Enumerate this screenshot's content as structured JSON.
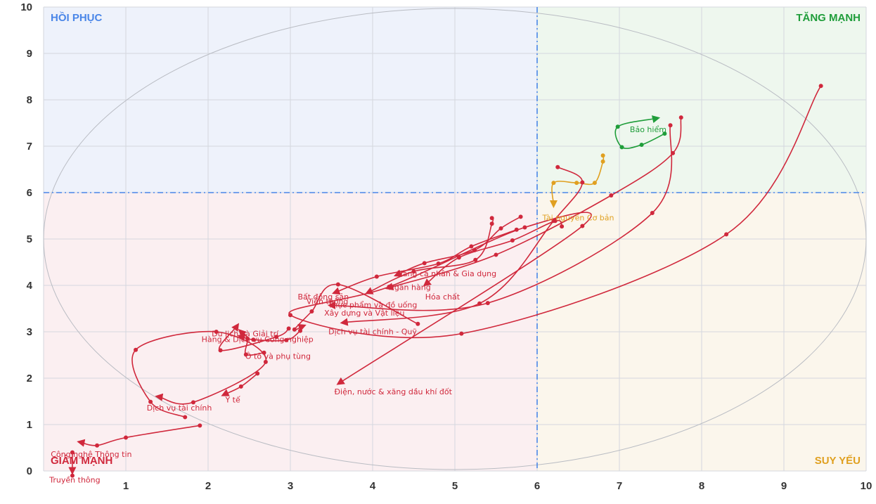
{
  "chart_data": {
    "type": "scatter",
    "title": "",
    "xlabel": "",
    "ylabel": "",
    "xlim": [
      0,
      10
    ],
    "ylim": [
      0,
      10
    ],
    "grid": true,
    "xticks": [
      "1",
      "2",
      "3",
      "4",
      "5",
      "6",
      "7",
      "8",
      "9",
      "10"
    ],
    "yticks": [
      "0",
      "1",
      "2",
      "3",
      "4",
      "5",
      "6",
      "7",
      "8",
      "9",
      "10"
    ],
    "threshold": {
      "x": 6,
      "y": 6
    },
    "quadrants": [
      {
        "key": "top_left",
        "label": "HỒI PHỤC",
        "color": "#4a86e8",
        "fill": "#eef2fb"
      },
      {
        "key": "top_right",
        "label": "TĂNG MẠNH",
        "color": "#1f9d3a",
        "fill": "#eef7ee"
      },
      {
        "key": "bottom_left",
        "label": "GIẢM MẠNH",
        "color": "#d0283c",
        "fill": "#fbeff1"
      },
      {
        "key": "bottom_right",
        "label": "SUY YẾU",
        "color": "#e0a020",
        "fill": "#fbf6ec"
      }
    ],
    "colors": {
      "red": "#d0283c",
      "green": "#1f9d3a",
      "orange": "#e0a020"
    },
    "series": [
      {
        "name": "Bảo hiểm",
        "color": "#1f9d3a",
        "label_at": [
          7.35,
          7.3
        ],
        "points": [
          [
            7.55,
            7.27
          ],
          [
            7.27,
            7.03
          ],
          [
            7.03,
            6.98
          ],
          [
            6.98,
            7.42
          ],
          [
            7.45,
            7.6
          ]
        ]
      },
      {
        "name": "Tài nguyên Cơ bản",
        "color": "#e0a020",
        "label_at": [
          6.5,
          5.4
        ],
        "points": [
          [
            6.8,
            6.8
          ],
          [
            6.8,
            6.67
          ],
          [
            6.7,
            6.21
          ],
          [
            6.48,
            6.21
          ],
          [
            6.2,
            6.21
          ],
          [
            6.2,
            5.75
          ]
        ]
      },
      {
        "name": "Hàng cá nhân & Gia dụng",
        "color": "#d0283c",
        "label_at": [
          4.9,
          4.2
        ],
        "points": [
          [
            5.8,
            5.48
          ],
          [
            5.56,
            5.23
          ],
          [
            5.24,
            4.76
          ],
          [
            4.63,
            4.48
          ],
          [
            4.3,
            4.23
          ]
        ]
      },
      {
        "name": "Ngân hàng",
        "color": "#d0283c",
        "label_at": [
          4.45,
          3.9
        ],
        "points": [
          [
            5.45,
            5.45
          ],
          [
            5.45,
            5.33
          ],
          [
            5.25,
            4.55
          ],
          [
            4.5,
            4.3
          ],
          [
            3.95,
            3.85
          ]
        ]
      },
      {
        "name": "Hóa chất",
        "color": "#d0283c",
        "label_at": [
          4.85,
          3.7
        ],
        "points": [
          [
            6.3,
            5.27
          ],
          [
            6.22,
            5.39
          ],
          [
            5.7,
            4.97
          ],
          [
            5.05,
            4.6
          ],
          [
            4.65,
            4.03
          ]
        ]
      },
      {
        "name": "Thực phẩm và đồ uống",
        "color": "#d0283c",
        "label_at": [
          4.0,
          3.52
        ],
        "points": [
          [
            7.75,
            7.62
          ],
          [
            7.65,
            6.85
          ],
          [
            6.9,
            5.94
          ],
          [
            5.5,
            4.66
          ],
          [
            4.2,
            3.95
          ]
        ]
      },
      {
        "name": "Xây dựng và Vật liệu",
        "color": "#d0283c",
        "label_at": [
          3.9,
          3.35
        ],
        "points": [
          [
            6.25,
            6.55
          ],
          [
            6.55,
            6.22
          ],
          [
            6.2,
            5.39
          ],
          [
            5.3,
            3.61
          ],
          [
            3.65,
            3.2
          ]
        ]
      },
      {
        "name": "Bất động sản",
        "color": "#d0283c",
        "label_at": [
          3.4,
          3.7
        ],
        "points": [
          [
            5.75,
            5.2
          ],
          [
            5.2,
            4.84
          ],
          [
            4.8,
            4.47
          ],
          [
            4.05,
            4.19
          ],
          [
            3.55,
            3.85
          ]
        ]
      },
      {
        "name": "Viễn thông",
        "color": "#d0283c",
        "label_at": [
          3.45,
          3.6
        ],
        "points": [
          [
            7.62,
            7.45
          ],
          [
            7.4,
            5.56
          ],
          [
            5.4,
            3.62
          ],
          [
            3.5,
            3.57
          ]
        ]
      },
      {
        "name": "Dịch vụ tài chính - Quỹ",
        "color": "#d0283c",
        "label_at": [
          4.0,
          2.95
        ],
        "points": [
          [
            4.55,
            3.17
          ],
          [
            3.58,
            4.02
          ],
          [
            3.26,
            3.44
          ],
          [
            3.05,
            3.05
          ],
          [
            3.15,
            3.12
          ]
        ]
      },
      {
        "name": "Du lịch và Giải trí",
        "color": "#d0283c",
        "label_at": [
          2.45,
          2.9
        ],
        "points": [
          [
            2.98,
            3.07
          ],
          [
            2.83,
            2.89
          ],
          [
            2.15,
            2.6
          ],
          [
            2.35,
            3.12
          ]
        ]
      },
      {
        "name": "Hàng & Dịch vụ Công nghiệp",
        "color": "#d0283c",
        "label_at": [
          2.6,
          2.78
        ],
        "points": [
          [
            3.12,
            3.02
          ],
          [
            2.95,
            2.82
          ],
          [
            2.55,
            2.83
          ],
          [
            2.4,
            2.9
          ]
        ]
      },
      {
        "name": "Ô tô và phụ tùng",
        "color": "#d0283c",
        "label_at": [
          2.85,
          2.42
        ],
        "points": [
          [
            2.68,
            2.55
          ],
          [
            2.46,
            2.51
          ],
          [
            2.48,
            2.85
          ],
          [
            2.4,
            3.0
          ]
        ]
      },
      {
        "name": "Y tế",
        "color": "#d0283c",
        "label_at": [
          2.3,
          1.48
        ],
        "points": [
          [
            2.6,
            2.1
          ],
          [
            2.4,
            1.82
          ],
          [
            2.2,
            1.65
          ]
        ]
      },
      {
        "name": "Dịch vụ tài chính",
        "color": "#d0283c",
        "label_at": [
          1.65,
          1.3
        ],
        "points": [
          [
            1.72,
            1.16
          ],
          [
            1.3,
            1.49
          ],
          [
            1.12,
            2.61
          ],
          [
            2.1,
            3.0
          ],
          [
            2.7,
            2.35
          ],
          [
            1.82,
            1.48
          ],
          [
            1.4,
            1.6
          ]
        ]
      },
      {
        "name": "Điện, nước & xăng dầu khí đốt",
        "color": "#d0283c",
        "label_at": [
          4.25,
          1.65
        ],
        "points": [
          [
            9.45,
            8.3
          ],
          [
            8.3,
            5.1
          ],
          [
            5.08,
            2.96
          ],
          [
            3.0,
            3.36
          ],
          [
            4.2,
            3.97
          ],
          [
            5.85,
            5.25
          ],
          [
            6.55,
            5.28
          ],
          [
            3.6,
            1.9
          ]
        ]
      },
      {
        "name": "Công nghệ Thông tin",
        "color": "#d0283c",
        "label_at": [
          0.58,
          0.3
        ],
        "points": [
          [
            1.9,
            0.98
          ],
          [
            1.0,
            0.72
          ],
          [
            0.65,
            0.55
          ],
          [
            0.45,
            0.62
          ]
        ]
      },
      {
        "name": "GIẢM MẠNH",
        "color": "#d0283c",
        "label_at": null,
        "points": [
          [
            0.35,
            0.4
          ],
          [
            0.35,
            0.0
          ]
        ]
      },
      {
        "name": "Truyền thông",
        "color": "#d0283c",
        "label_at": [
          0.38,
          -0.25
        ],
        "points": [
          [
            0.35,
            -0.1
          ]
        ]
      }
    ]
  }
}
